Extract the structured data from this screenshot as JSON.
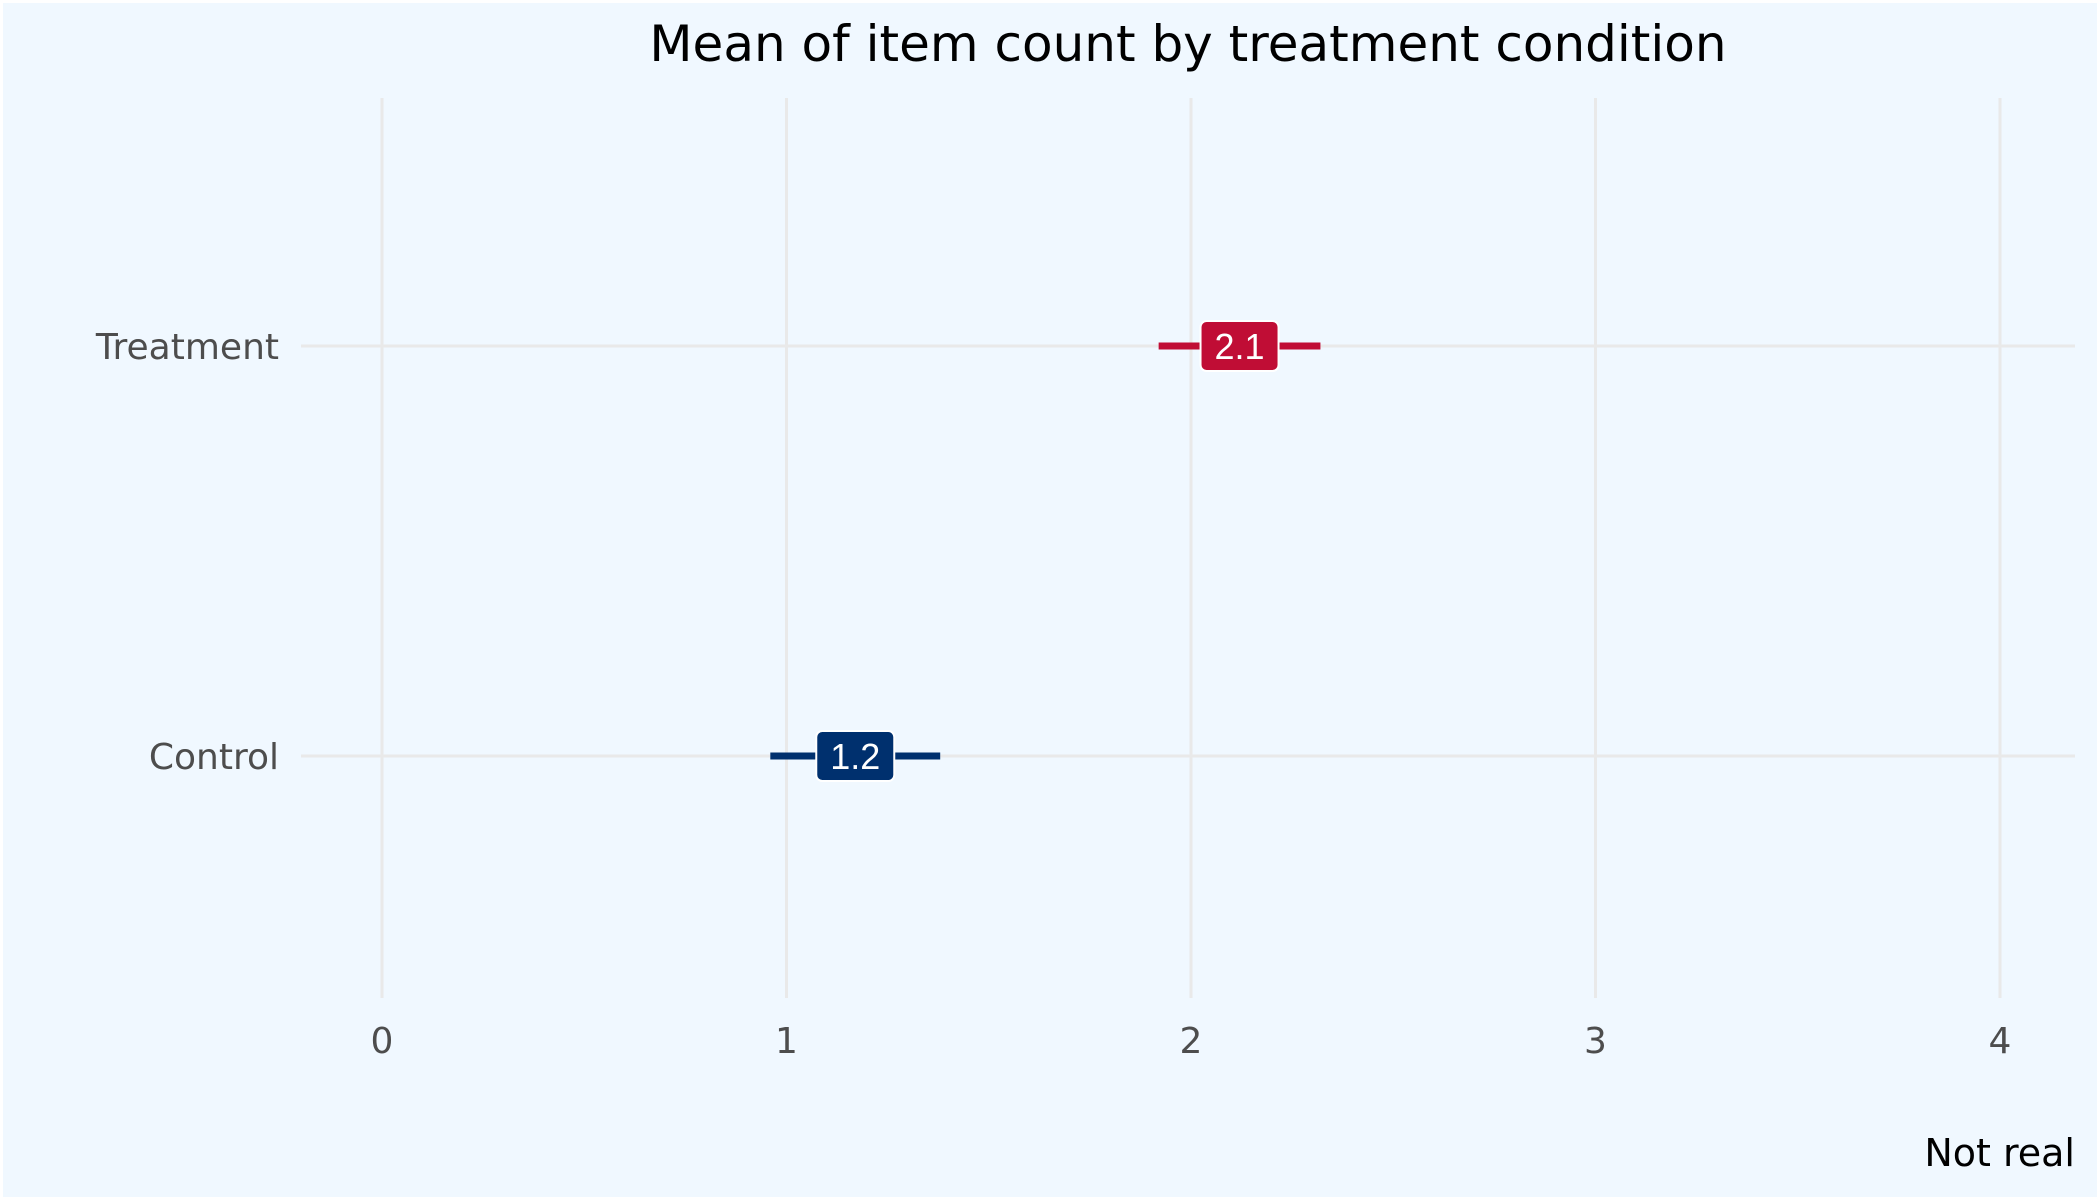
{
  "chart_data": {
    "type": "errorbar",
    "title": "Mean of item count by treatment condition",
    "caption": "Not real",
    "xlabel": "",
    "ylabel": "",
    "xlim": [
      0,
      4
    ],
    "x_ticks": [
      0,
      1,
      2,
      3,
      4
    ],
    "x_tick_labels": [
      "0",
      "1",
      "2",
      "3",
      "4"
    ],
    "grid": true,
    "categories": [
      "Control",
      "Treatment"
    ],
    "points": [
      {
        "category": "Control",
        "mean": 1.17,
        "lower": 0.96,
        "upper": 1.38,
        "label": "1.2",
        "color": "#00306e"
      },
      {
        "category": "Treatment",
        "mean": 2.12,
        "lower": 1.92,
        "upper": 2.32,
        "label": "2.1",
        "color": "#c00d35"
      }
    ]
  },
  "colors": {
    "background": "#f0f8ff",
    "gridline": "#e9e9e9",
    "tick_text": "#4d4d4d"
  }
}
